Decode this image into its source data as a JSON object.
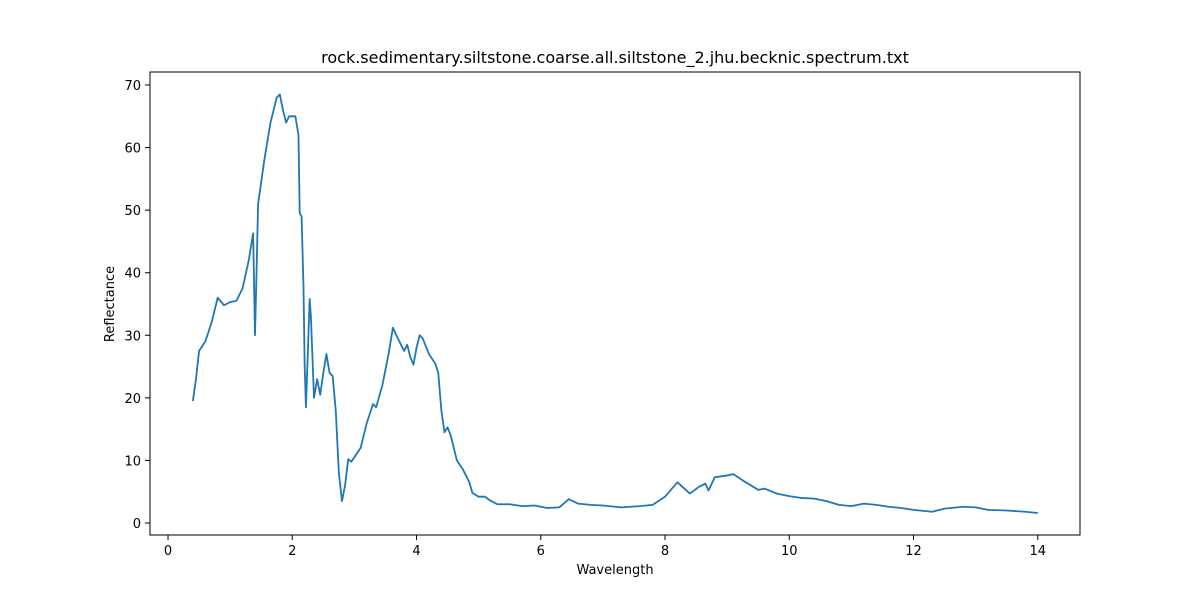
{
  "chart_data": {
    "type": "line",
    "title": "rock.sedimentary.siltstone.coarse.all.siltstone_2.jhu.becknic.spectrum.txt",
    "x_label": "Wavelength",
    "y_label": "Reflectance",
    "x": [
      0.4,
      0.45,
      0.5,
      0.6,
      0.7,
      0.8,
      0.9,
      1.0,
      1.1,
      1.2,
      1.3,
      1.37,
      1.4,
      1.42,
      1.45,
      1.55,
      1.65,
      1.75,
      1.8,
      1.85,
      1.9,
      1.95,
      2.05,
      2.1,
      2.12,
      2.15,
      2.18,
      2.2,
      2.22,
      2.25,
      2.28,
      2.3,
      2.35,
      2.4,
      2.45,
      2.5,
      2.55,
      2.6,
      2.65,
      2.7,
      2.75,
      2.8,
      2.85,
      2.9,
      2.95,
      3.0,
      3.1,
      3.2,
      3.3,
      3.35,
      3.45,
      3.55,
      3.62,
      3.7,
      3.8,
      3.85,
      3.9,
      3.95,
      4.0,
      4.05,
      4.1,
      4.2,
      4.3,
      4.35,
      4.4,
      4.45,
      4.5,
      4.55,
      4.65,
      4.75,
      4.85,
      4.9,
      5.0,
      5.1,
      5.2,
      5.3,
      5.5,
      5.7,
      5.9,
      6.1,
      6.3,
      6.45,
      6.6,
      6.8,
      7.0,
      7.3,
      7.6,
      7.8,
      8.0,
      8.2,
      8.4,
      8.55,
      8.65,
      8.7,
      8.8,
      9.0,
      9.1,
      9.3,
      9.5,
      9.6,
      9.8,
      10.0,
      10.2,
      10.4,
      10.6,
      10.8,
      11.0,
      11.2,
      11.4,
      11.6,
      11.8,
      12.0,
      12.3,
      12.5,
      12.8,
      13.0,
      13.2,
      13.5,
      13.8,
      14.0
    ],
    "series": [
      {
        "name": "Reflectance",
        "color": "#1f77b4",
        "values": [
          19.5,
          23,
          27.5,
          29,
          32,
          36,
          34.8,
          35.3,
          35.5,
          37.5,
          42,
          46.3,
          30,
          38,
          51,
          58,
          64,
          68,
          68.5,
          66,
          64,
          65,
          65,
          62,
          49.5,
          49,
          38,
          25,
          18.5,
          27,
          35.8,
          33,
          20,
          23,
          20.5,
          24,
          27,
          24,
          23.5,
          18,
          8,
          3.5,
          6,
          10.2,
          9.8,
          10.5,
          12,
          16,
          19,
          18.5,
          22,
          27,
          31.2,
          29.5,
          27.5,
          28.5,
          26.5,
          25.3,
          28,
          30,
          29.5,
          27,
          25.5,
          24,
          18,
          14.5,
          15.3,
          14,
          10,
          8.5,
          6.5,
          4.8,
          4.2,
          4.2,
          3.5,
          3,
          3,
          2.7,
          2.8,
          2.4,
          2.5,
          3.8,
          3.1,
          2.9,
          2.8,
          2.5,
          2.7,
          2.9,
          4.2,
          6.5,
          4.7,
          5.8,
          6.3,
          5.2,
          7.3,
          7.6,
          7.8,
          6.5,
          5.3,
          5.5,
          4.7,
          4.3,
          4,
          3.9,
          3.5,
          2.9,
          2.7,
          3.1,
          2.9,
          2.6,
          2.4,
          2.1,
          1.8,
          2.3,
          2.6,
          2.5,
          2.1,
          2.0,
          1.8,
          1.6
        ]
      }
    ],
    "xlim": [
      -0.29,
      14.68
    ],
    "ylim": [
      -1.92,
      72.08
    ],
    "xticks": [
      0,
      2,
      4,
      6,
      8,
      10,
      12,
      14
    ],
    "yticks": [
      0,
      10,
      20,
      30,
      40,
      50,
      60,
      70
    ]
  }
}
